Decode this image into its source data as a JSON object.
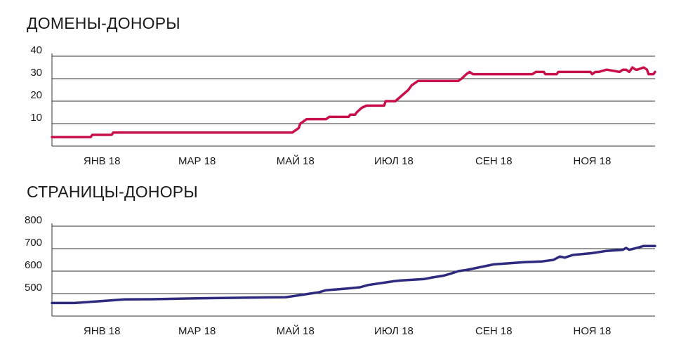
{
  "chart_data": [
    {
      "type": "line",
      "title": "ДОМЕНЫ-ДОНОРЫ",
      "x_tick_labels": [
        "ЯНВ 18",
        "МАР 18",
        "МАЙ 18",
        "ИЮЛ 18",
        "СЕН 18",
        "НОЯ 18"
      ],
      "y_ticks": [
        10,
        20,
        30,
        40
      ],
      "ylim": [
        0,
        40
      ],
      "grid": true,
      "color": "#c8104b",
      "series": [
        {
          "name": "",
          "x": [
            "2017-12-01",
            "2017-12-25",
            "2017-12-26",
            "2018-01-07",
            "2018-01-08",
            "2018-04-29",
            "2018-05-01",
            "2018-05-03",
            "2018-05-04",
            "2018-05-06",
            "2018-05-08",
            "2018-05-20",
            "2018-05-22",
            "2018-06-03",
            "2018-06-04",
            "2018-06-07",
            "2018-06-08",
            "2018-06-11",
            "2018-06-14",
            "2018-06-25",
            "2018-06-26",
            "2018-07-02",
            "2018-07-10",
            "2018-07-12",
            "2018-07-14",
            "2018-07-16",
            "2018-08-10",
            "2018-08-12",
            "2018-08-15",
            "2018-08-17",
            "2018-08-19",
            "2018-09-25",
            "2018-09-27",
            "2018-10-02",
            "2018-10-03",
            "2018-10-10",
            "2018-10-11",
            "2018-10-31",
            "2018-11-01",
            "2018-11-03",
            "2018-11-05",
            "2018-11-10",
            "2018-11-18",
            "2018-11-20",
            "2018-11-22",
            "2018-11-24",
            "2018-11-25",
            "2018-11-26",
            "2018-11-28",
            "2018-11-29",
            "2018-12-03",
            "2018-12-05",
            "2018-12-06",
            "2018-12-09",
            "2018-12-10"
          ],
          "values": [
            4,
            4,
            5,
            5,
            6,
            6,
            7,
            8,
            10,
            11,
            12,
            12,
            13,
            13,
            14,
            14,
            15,
            17,
            18,
            18,
            20,
            20,
            25,
            27,
            28,
            29,
            29,
            30,
            32,
            33,
            32,
            32,
            33,
            33,
            32,
            32,
            33,
            33,
            32,
            33,
            33,
            34,
            33,
            34,
            34,
            33,
            34,
            35,
            34,
            34,
            35,
            34,
            32,
            32,
            33
          ]
        }
      ]
    },
    {
      "type": "line",
      "title": "СТРАНИЦЫ-ДОНОРЫ",
      "x_tick_labels": [
        "ЯНВ 18",
        "МАР 18",
        "МАЙ 18",
        "ИЮЛ 18",
        "СЕН 18",
        "НОЯ 18"
      ],
      "y_ticks": [
        500,
        600,
        700,
        800
      ],
      "ylim": [
        400,
        800
      ],
      "grid": true,
      "color": "#2e2a7e",
      "series": [
        {
          "name": "",
          "x": [
            "2017-12-01",
            "2017-12-15",
            "2018-01-01",
            "2018-01-15",
            "2018-02-01",
            "2018-03-01",
            "2018-04-01",
            "2018-04-25",
            "2018-05-01",
            "2018-05-10",
            "2018-05-15",
            "2018-05-20",
            "2018-06-01",
            "2018-06-10",
            "2018-06-15",
            "2018-07-01",
            "2018-07-05",
            "2018-07-20",
            "2018-07-25",
            "2018-08-01",
            "2018-08-05",
            "2018-08-10",
            "2018-08-15",
            "2018-09-01",
            "2018-09-20",
            "2018-10-01",
            "2018-10-08",
            "2018-10-12",
            "2018-10-15",
            "2018-10-20",
            "2018-11-01",
            "2018-11-10",
            "2018-11-20",
            "2018-11-22",
            "2018-11-24",
            "2018-11-27",
            "2018-12-03",
            "2018-12-10"
          ],
          "values": [
            458,
            458,
            467,
            474,
            475,
            479,
            482,
            484,
            490,
            500,
            505,
            515,
            522,
            528,
            538,
            555,
            558,
            565,
            572,
            580,
            588,
            600,
            605,
            630,
            640,
            643,
            650,
            665,
            660,
            672,
            680,
            690,
            695,
            703,
            695,
            700,
            712,
            712
          ]
        }
      ]
    }
  ]
}
